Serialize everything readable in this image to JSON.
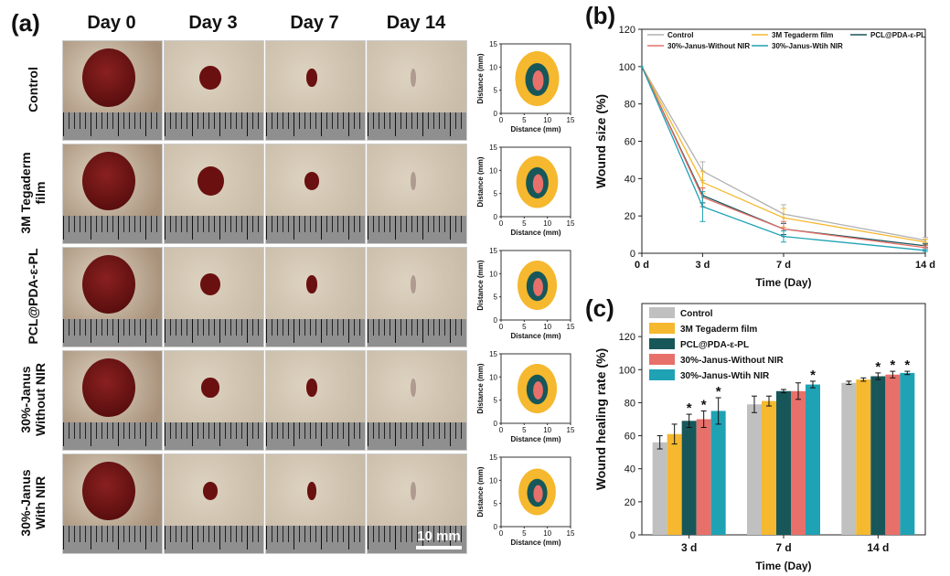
{
  "panel_a": {
    "letter": "(a)",
    "days": [
      "Day 0",
      "Day 3",
      "Day 7",
      "Day 14"
    ],
    "rows": [
      {
        "label": [
          "Control"
        ],
        "wound": [
          1.0,
          0.42,
          0.2,
          0.08
        ]
      },
      {
        "label": [
          "3M Tegaderm",
          "film"
        ],
        "wound": [
          1.0,
          0.5,
          0.28,
          0.1
        ]
      },
      {
        "label": [
          "PCL@PDA-ε-PL"
        ],
        "wound": [
          1.0,
          0.38,
          0.2,
          0.08
        ]
      },
      {
        "label": [
          "30%-Janus",
          "Without NIR"
        ],
        "wound": [
          1.0,
          0.33,
          0.2,
          0.07
        ]
      },
      {
        "label": [
          "30%-Janus",
          "With NIR"
        ],
        "wound": [
          1.0,
          0.28,
          0.17,
          0.06
        ]
      }
    ],
    "scale_bar": "10 mm",
    "trace": {
      "xlabel": "Distance (mm)",
      "ylabel": "Distance (mm)",
      "ticks": [
        "0",
        "5",
        "10",
        "15"
      ]
    },
    "colors": {
      "day0": "#f5b82e",
      "day3": "#17575a",
      "day7": "#e8706b",
      "skin": "#bfae96",
      "wound": "#6a1010"
    }
  },
  "chart_data": [
    {
      "panel": "(b)",
      "type": "line",
      "title": "",
      "xlabel": "Time (Day)",
      "ylabel": "Wound size (%)",
      "categories": [
        "0 d",
        "3 d",
        "7 d",
        "14 d"
      ],
      "ylim": [
        0,
        120
      ],
      "yticks": [
        0,
        20,
        40,
        60,
        80,
        100,
        120
      ],
      "series": [
        {
          "name": "Control",
          "color": "#b0b0b0",
          "values": [
            100,
            44,
            21,
            7
          ],
          "err": [
            0,
            5,
            5,
            1.5
          ]
        },
        {
          "name": "3M Tegaderm film",
          "color": "#f5b82e",
          "values": [
            100,
            38,
            19,
            6
          ],
          "err": [
            0,
            6,
            5,
            1.5
          ]
        },
        {
          "name": "PCL@PDA-ε-PL",
          "color": "#17575a",
          "values": [
            100,
            31,
            13,
            4
          ],
          "err": [
            0,
            4,
            3,
            1
          ]
        },
        {
          "name": "30%-Janus-Without NIR",
          "color": "#e8706b",
          "values": [
            100,
            30,
            13,
            3
          ],
          "err": [
            0,
            5,
            4,
            1
          ]
        },
        {
          "name": "30%-Janus-Wtih NIR",
          "color": "#1fa2b4",
          "values": [
            100,
            25,
            9,
            1.5
          ],
          "err": [
            0,
            8,
            3,
            0.5
          ]
        }
      ]
    },
    {
      "panel": "(c)",
      "type": "bar",
      "title": "",
      "xlabel": "Time (Day)",
      "ylabel": "Wound healing rate (%)",
      "categories": [
        "3 d",
        "7 d",
        "14 d"
      ],
      "ylim": [
        0,
        140
      ],
      "yticks": [
        0,
        20,
        40,
        60,
        80,
        100,
        120
      ],
      "series": [
        {
          "name": "Control",
          "color": "#c0c0c0",
          "values": [
            56,
            79,
            92
          ],
          "err": [
            4,
            5,
            1
          ],
          "sig": [
            false,
            false,
            false
          ]
        },
        {
          "name": "3M Tegaderm film",
          "color": "#f5b82e",
          "values": [
            61,
            81,
            94
          ],
          "err": [
            6,
            3,
            1
          ],
          "sig": [
            false,
            false,
            false
          ]
        },
        {
          "name": "PCL@PDA-ε-PL",
          "color": "#17575a",
          "values": [
            69,
            87,
            96
          ],
          "err": [
            4,
            1,
            2
          ],
          "sig": [
            true,
            false,
            true
          ]
        },
        {
          "name": "30%-Janus-Without NIR",
          "color": "#e8706b",
          "values": [
            70,
            87,
            97
          ],
          "err": [
            5,
            5,
            2
          ],
          "sig": [
            true,
            false,
            true
          ]
        },
        {
          "name": "30%-Janus-Wtih NIR",
          "color": "#1fa2b4",
          "values": [
            75,
            91,
            98
          ],
          "err": [
            8,
            2,
            1
          ],
          "sig": [
            true,
            true,
            true
          ]
        }
      ],
      "sig_symbol": "*"
    }
  ]
}
